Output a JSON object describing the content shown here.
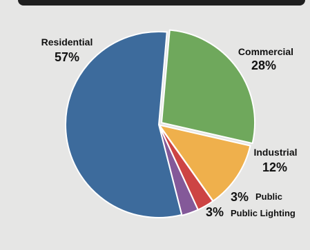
{
  "chart_data": {
    "type": "pie",
    "slices": [
      {
        "label": "Residential",
        "value": 57,
        "pct_label": "57%",
        "color": "#3d6b9c"
      },
      {
        "label": "Commercial",
        "value": 28,
        "pct_label": "28%",
        "color": "#6fa85c"
      },
      {
        "label": "Industrial",
        "value": 12,
        "pct_label": "12%",
        "color": "#efb04c"
      },
      {
        "label": "Public",
        "value": 3,
        "pct_label": "3%",
        "color": "#cd4444"
      },
      {
        "label": "Public Lighting",
        "value": 3,
        "pct_label": "3%",
        "color": "#845999"
      }
    ]
  }
}
